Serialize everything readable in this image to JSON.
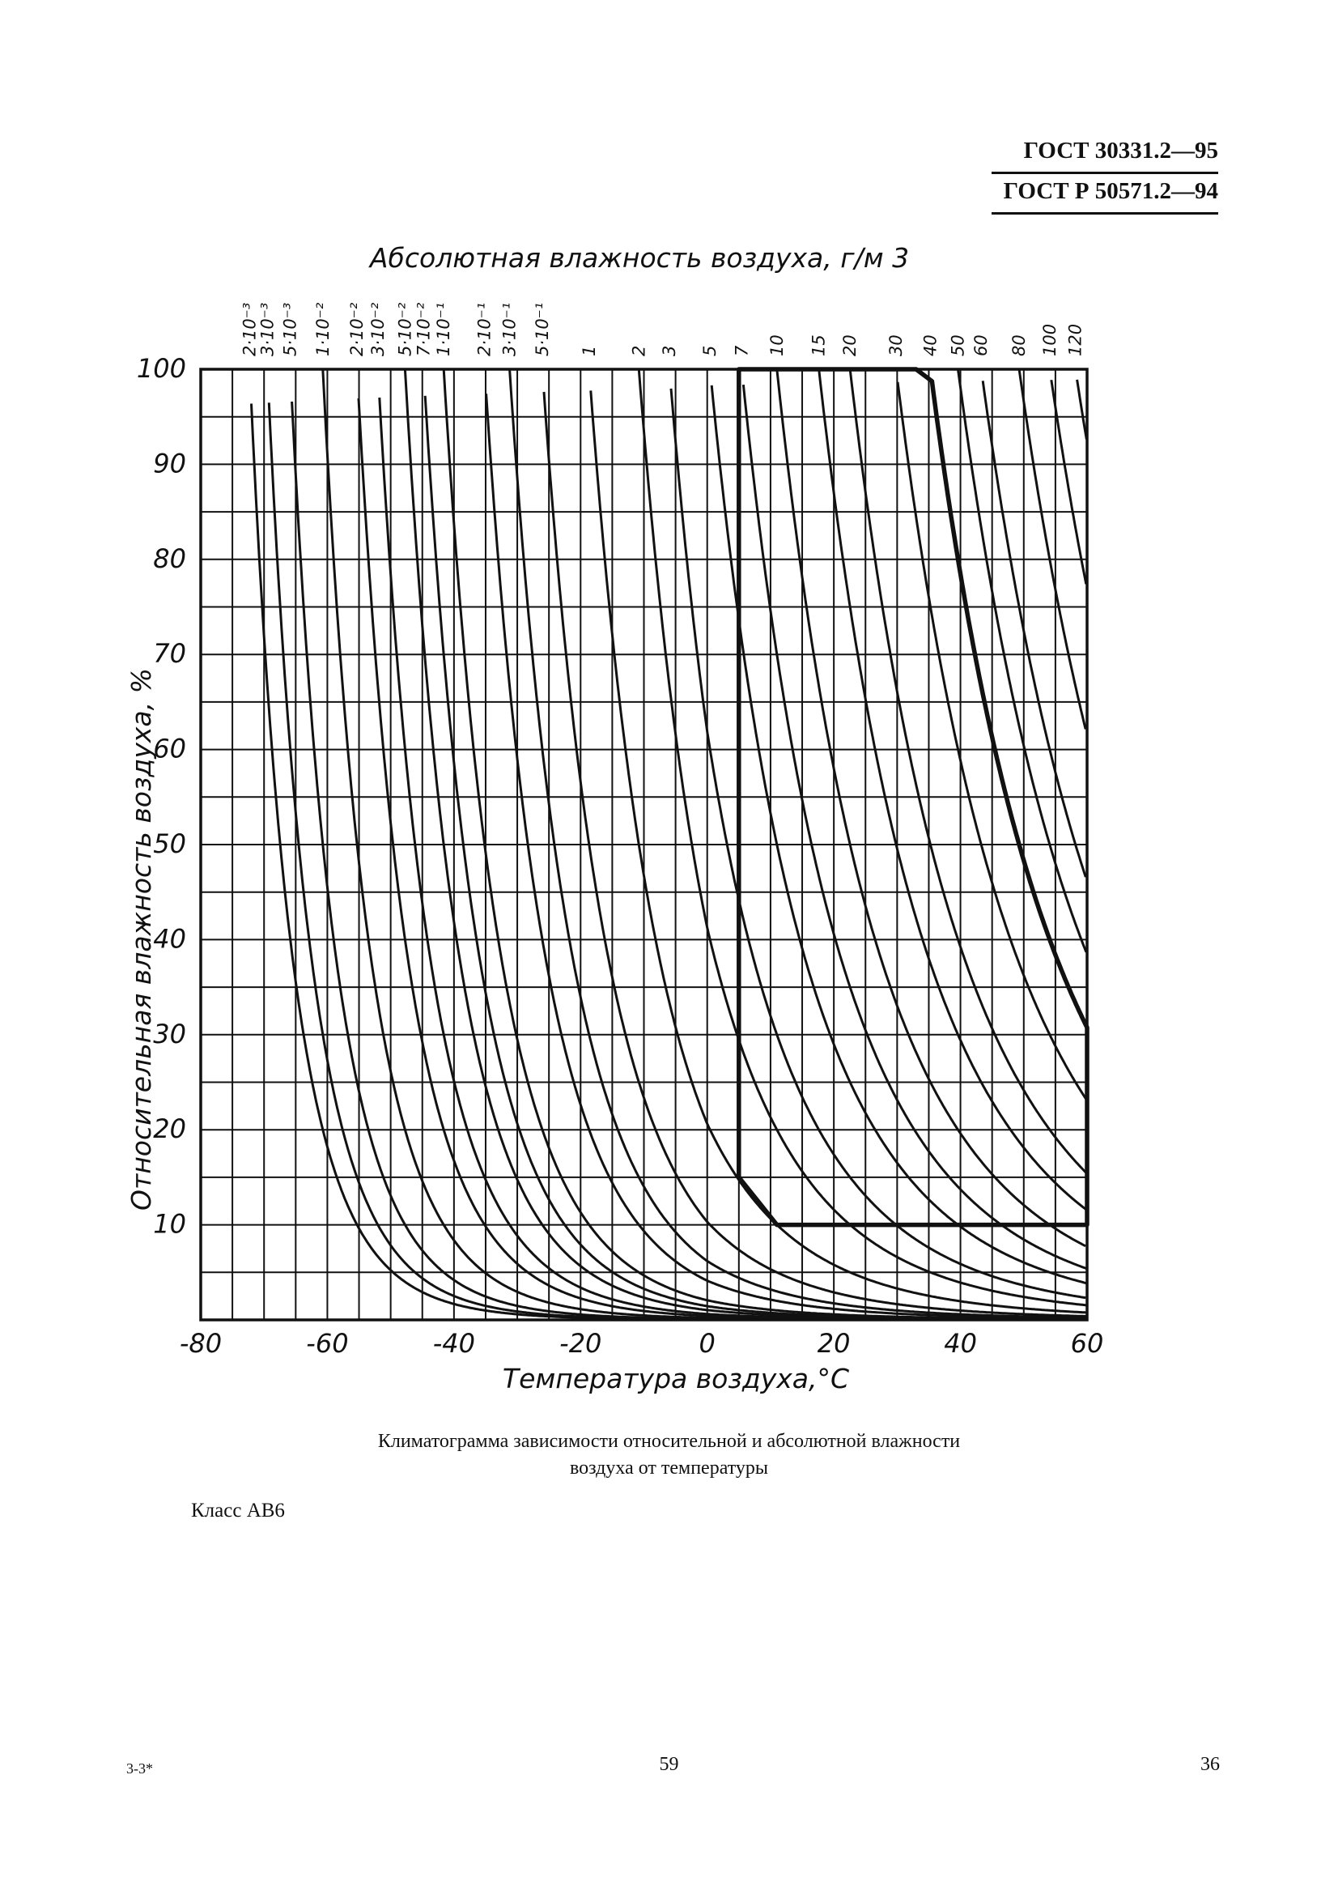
{
  "header": {
    "standard_1": "ГОСТ 30331.2—95",
    "standard_2": "ГОСТ Р 50571.2—94"
  },
  "chart_data": {
    "type": "line",
    "title": "",
    "top_axis_label": "Абсолютная влажность воздуха, г/м 3",
    "xlabel": "Температура воздуха,°С",
    "ylabel": "Относительная влажность воздуха, %",
    "xlim": [
      -80,
      60
    ],
    "ylim": [
      0,
      100
    ],
    "grid": true,
    "x_ticks": [
      "-80",
      "-60",
      "-40",
      "-20",
      "0",
      "20",
      "40",
      "60"
    ],
    "y_ticks": [
      "10",
      "20",
      "30",
      "40",
      "50",
      "60",
      "70",
      "80",
      "90",
      "100"
    ],
    "absolute_humidity_curves": [
      {
        "label": "2·10⁻³",
        "value": 0.002
      },
      {
        "label": "3·10⁻³",
        "value": 0.003
      },
      {
        "label": "5·10⁻³",
        "value": 0.005
      },
      {
        "label": "1·10⁻²",
        "value": 0.01
      },
      {
        "label": "2·10⁻²",
        "value": 0.02
      },
      {
        "label": "3·10⁻²",
        "value": 0.03
      },
      {
        "label": "5·10⁻²",
        "value": 0.05
      },
      {
        "label": "7·10⁻²",
        "value": 0.07
      },
      {
        "label": "1·10⁻¹",
        "value": 0.1
      },
      {
        "label": "2·10⁻¹",
        "value": 0.2
      },
      {
        "label": "3·10⁻¹",
        "value": 0.3
      },
      {
        "label": "5·10⁻¹",
        "value": 0.5
      },
      {
        "label": "1",
        "value": 1
      },
      {
        "label": "2",
        "value": 2
      },
      {
        "label": "3",
        "value": 3
      },
      {
        "label": "5",
        "value": 5
      },
      {
        "label": "7",
        "value": 7
      },
      {
        "label": "10",
        "value": 10
      },
      {
        "label": "15",
        "value": 15
      },
      {
        "label": "20",
        "value": 20
      },
      {
        "label": "30",
        "value": 30
      },
      {
        "label": "40",
        "value": 40
      },
      {
        "label": "50",
        "value": 50
      },
      {
        "label": "60",
        "value": 60
      },
      {
        "label": "80",
        "value": 80
      },
      {
        "label": "100",
        "value": 100
      },
      {
        "label": "120",
        "value": 120
      }
    ],
    "class_region": {
      "boundary": [
        {
          "t": 5,
          "rh": 100
        },
        {
          "t": 33,
          "rh": 100
        },
        {
          "abs_humidity": 40,
          "from_t": 33,
          "to_t": 60
        },
        {
          "t": 60,
          "rh": 25
        },
        {
          "t": 60,
          "rh": 10
        },
        {
          "t": 11,
          "rh": 10
        },
        {
          "t": 5,
          "rh": 15
        }
      ]
    }
  },
  "caption": {
    "line1": "Климатограмма зависимости относительной и абсолютной влажности",
    "line2": "воздуха от температуры"
  },
  "class_label": "Класс АВ6",
  "footer": {
    "left": "3-3*",
    "center": "59",
    "right": "36"
  }
}
